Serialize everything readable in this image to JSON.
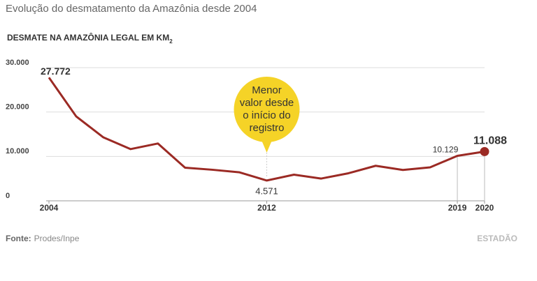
{
  "chart_data": {
    "type": "line",
    "title": "Evolução do desmatamento da Amazônia desde 2004",
    "subtitle": "DESMATE NA AMAZÔNIA LEGAL EM KM",
    "subtitle_sub": "2",
    "x": [
      2004,
      2005,
      2006,
      2007,
      2008,
      2009,
      2010,
      2011,
      2012,
      2013,
      2014,
      2015,
      2016,
      2017,
      2018,
      2019,
      2020
    ],
    "values": [
      27772,
      19014,
      14286,
      11651,
      12911,
      7464,
      7000,
      6418,
      4571,
      5891,
      5012,
      6207,
      7893,
      6947,
      7536,
      10129,
      11088
    ],
    "value_labels": [
      "27.772",
      null,
      null,
      null,
      null,
      null,
      null,
      null,
      "4.571",
      null,
      null,
      null,
      null,
      null,
      null,
      "10.129",
      "11.088"
    ],
    "color": "#9b2a24",
    "xlim": [
      2004,
      2020
    ],
    "xticks": [
      2004,
      2012,
      2019,
      2020
    ],
    "ylim": [
      0,
      30000
    ],
    "yticks": [
      {
        "value": 0,
        "label": "0"
      },
      {
        "value": 10000,
        "label": "10.000"
      },
      {
        "value": 20000,
        "label": "20.000"
      },
      {
        "value": 30000,
        "label": "30.000"
      }
    ],
    "grid": true,
    "annotation": {
      "x": 2012,
      "lines": [
        "Menor",
        "valor desde",
        "o início do",
        "registro"
      ],
      "color": "#f5d327"
    },
    "source_label": "Fonte:",
    "source": "Prodes/Inpe",
    "brand": "ESTADÃO"
  }
}
